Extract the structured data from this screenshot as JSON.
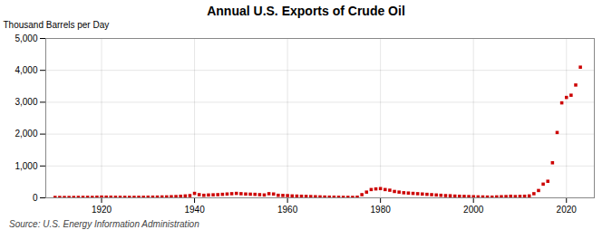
{
  "chart_data": {
    "type": "scatter",
    "title": "Annual U.S. Exports of Crude Oil",
    "ylabel": "Thousand Barrels per Day",
    "annotations": [
      "Source: U.S. Energy Information Administration"
    ],
    "x": [
      1910,
      1911,
      1912,
      1913,
      1914,
      1915,
      1916,
      1917,
      1918,
      1919,
      1920,
      1921,
      1922,
      1923,
      1924,
      1925,
      1926,
      1927,
      1928,
      1929,
      1930,
      1931,
      1932,
      1933,
      1934,
      1935,
      1936,
      1937,
      1938,
      1939,
      1940,
      1941,
      1942,
      1943,
      1944,
      1945,
      1946,
      1947,
      1948,
      1949,
      1950,
      1951,
      1952,
      1953,
      1954,
      1955,
      1956,
      1957,
      1958,
      1959,
      1960,
      1961,
      1962,
      1963,
      1964,
      1965,
      1966,
      1967,
      1968,
      1969,
      1970,
      1971,
      1972,
      1973,
      1974,
      1975,
      1976,
      1977,
      1978,
      1979,
      1980,
      1981,
      1982,
      1983,
      1984,
      1985,
      1986,
      1987,
      1988,
      1989,
      1990,
      1991,
      1992,
      1993,
      1994,
      1995,
      1996,
      1997,
      1998,
      1999,
      2000,
      2001,
      2002,
      2003,
      2004,
      2005,
      2006,
      2007,
      2008,
      2009,
      2010,
      2011,
      2012,
      2013,
      2014,
      2015,
      2016,
      2017,
      2018,
      2019,
      2020,
      2021,
      2022,
      2023
    ],
    "values": [
      13,
      12,
      11,
      11,
      12,
      14,
      15,
      16,
      14,
      20,
      25,
      22,
      20,
      18,
      17,
      16,
      15,
      16,
      17,
      18,
      20,
      22,
      24,
      28,
      30,
      35,
      40,
      50,
      60,
      70,
      140,
      100,
      80,
      90,
      95,
      100,
      110,
      120,
      130,
      140,
      130,
      120,
      115,
      110,
      100,
      90,
      130,
      120,
      80,
      75,
      70,
      60,
      55,
      50,
      45,
      40,
      35,
      30,
      25,
      22,
      20,
      18,
      16,
      15,
      14,
      20,
      100,
      180,
      260,
      280,
      290,
      260,
      240,
      200,
      180,
      160,
      150,
      140,
      130,
      120,
      110,
      100,
      90,
      80,
      70,
      65,
      55,
      50,
      45,
      40,
      35,
      30,
      28,
      25,
      22,
      30,
      35,
      40,
      50,
      40,
      45,
      50,
      60,
      130,
      230,
      430,
      520,
      1100,
      2050,
      2980,
      3150,
      3220,
      3540,
      4100
    ],
    "color": "#cc0000",
    "marker": "square",
    "xlim": [
      1908,
      2026
    ],
    "xticks": [
      1920,
      1940,
      1960,
      1980,
      2000,
      2020
    ],
    "ylim": [
      0,
      5000
    ],
    "yticks": [
      0,
      {
        "value": 1000,
        "label": "1,000"
      },
      {
        "value": 2000,
        "label": "2,000"
      },
      {
        "value": 3000,
        "label": "3,000"
      },
      {
        "value": 4000,
        "label": "4,000"
      },
      {
        "value": 5000,
        "label": "5,000"
      }
    ],
    "grid": true
  }
}
